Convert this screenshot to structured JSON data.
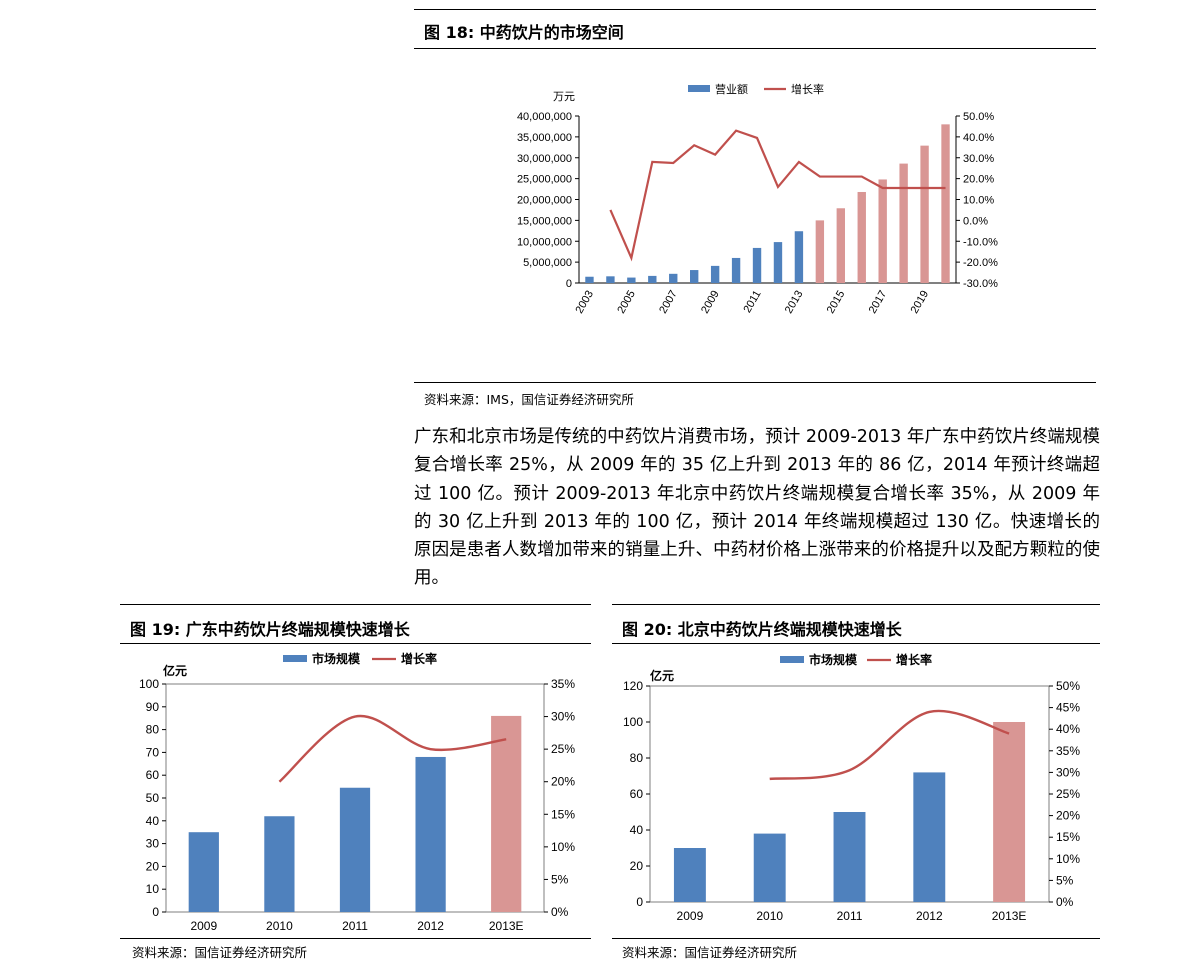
{
  "fig18": {
    "title": "图 18:  中药饮片的市场空间",
    "source": "资料来源：IMS，国信证券经济研究所"
  },
  "paragraph": "广东和北京市场是传统的中药饮片消费市场，预计 2009-2013 年广东中药饮片终端规模复合增长率 25%，从 2009 年的 35 亿上升到 2013 年的 86 亿，2014 年预计终端超过 100 亿。预计 2009-2013 年北京中药饮片终端规模复合增长率 35%，从 2009 年的 30 亿上升到 2013 年的 100 亿，预计 2014 年终端规模超过 130 亿。快速增长的原因是患者人数增加带来的销量上升、中药材价格上涨带来的价格提升以及配方颗粒的使用。",
  "fig19": {
    "title": "图 19:  广东中药饮片终端规模快速增长",
    "source": "资料来源：国信证券经济研究所"
  },
  "fig20": {
    "title": "图 20:  北京中药饮片终端规模快速增长",
    "source": "资料来源：国信证券经济研究所"
  },
  "colors": {
    "actual": "#4f81bd",
    "forecast": "#d99694",
    "line": "#c0504d"
  },
  "chart_data": [
    {
      "id": "fig18",
      "type": "bar",
      "title": "",
      "ylabel": "万元",
      "categories": [
        "2003",
        "2004",
        "2005",
        "2006",
        "2007",
        "2008",
        "2009",
        "2010",
        "2011",
        "2012",
        "2013",
        "2014",
        "2015",
        "2016",
        "2017",
        "2018",
        "2019",
        "2020"
      ],
      "x_tick_labels": [
        "2003",
        "2005",
        "2007",
        "2009",
        "2011",
        "2013",
        "2015",
        "2017",
        "2019"
      ],
      "ylim": [
        0,
        40000000
      ],
      "y_ticks": [
        "0",
        "5,000,000",
        "10,000,000",
        "15,000,000",
        "20,000,000",
        "25,000,000",
        "30,000,000",
        "35,000,000",
        "40,000,000"
      ],
      "y2lim": [
        -0.3,
        0.5
      ],
      "y2_ticks": [
        "-30.0%",
        "-20.0%",
        "-10.0%",
        "0.0%",
        "10.0%",
        "20.0%",
        "30.0%",
        "40.0%",
        "50.0%"
      ],
      "legend_position": "top",
      "forecast_from_index": 11,
      "series": [
        {
          "name": "营业额",
          "kind": "bar",
          "values": [
            1500000,
            1600000,
            1300000,
            1700000,
            2200000,
            3100000,
            4100000,
            6000000,
            8400000,
            9800000,
            12400000,
            15000000,
            17900000,
            21800000,
            24800000,
            28600000,
            32900000,
            38000000
          ]
        },
        {
          "name": "增长率",
          "kind": "line",
          "axis": "right",
          "values": [
            null,
            0.05,
            -0.18,
            0.28,
            0.275,
            0.36,
            0.315,
            0.43,
            0.395,
            0.16,
            0.28,
            0.21,
            0.21,
            0.21,
            0.155,
            0.155,
            0.155,
            0.155
          ]
        }
      ]
    },
    {
      "id": "fig19",
      "type": "bar",
      "title": "",
      "ylabel": "亿元",
      "categories": [
        "2009",
        "2010",
        "2011",
        "2012",
        "2013E"
      ],
      "ylim": [
        0,
        100
      ],
      "y_ticks": [
        "0",
        "10",
        "20",
        "30",
        "40",
        "50",
        "60",
        "70",
        "80",
        "90",
        "100"
      ],
      "y2lim": [
        0,
        0.35
      ],
      "y2_ticks": [
        "0%",
        "5%",
        "10%",
        "15%",
        "20%",
        "25%",
        "30%",
        "35%"
      ],
      "legend_position": "top",
      "forecast_from_index": 4,
      "series": [
        {
          "name": "市场规模",
          "kind": "bar",
          "values": [
            35,
            42,
            54.5,
            68,
            86
          ]
        },
        {
          "name": "增长率",
          "kind": "line",
          "axis": "right",
          "smooth": true,
          "values": [
            null,
            0.2,
            0.3,
            0.25,
            0.265
          ]
        }
      ]
    },
    {
      "id": "fig20",
      "type": "bar",
      "title": "",
      "ylabel": "亿元",
      "categories": [
        "2009",
        "2010",
        "2011",
        "2012",
        "2013E"
      ],
      "ylim": [
        0,
        120
      ],
      "y_ticks": [
        "0",
        "20",
        "40",
        "60",
        "80",
        "100",
        "120"
      ],
      "y2lim": [
        0,
        0.5
      ],
      "y2_ticks": [
        "0%",
        "5%",
        "10%",
        "15%",
        "20%",
        "25%",
        "30%",
        "35%",
        "40%",
        "45%",
        "50%"
      ],
      "legend_position": "top",
      "forecast_from_index": 4,
      "series": [
        {
          "name": "市场规模",
          "kind": "bar",
          "values": [
            30,
            38,
            50,
            72,
            100
          ]
        },
        {
          "name": "增长率",
          "kind": "line",
          "axis": "right",
          "smooth": true,
          "values": [
            null,
            0.285,
            0.305,
            0.44,
            0.39
          ]
        }
      ]
    }
  ]
}
